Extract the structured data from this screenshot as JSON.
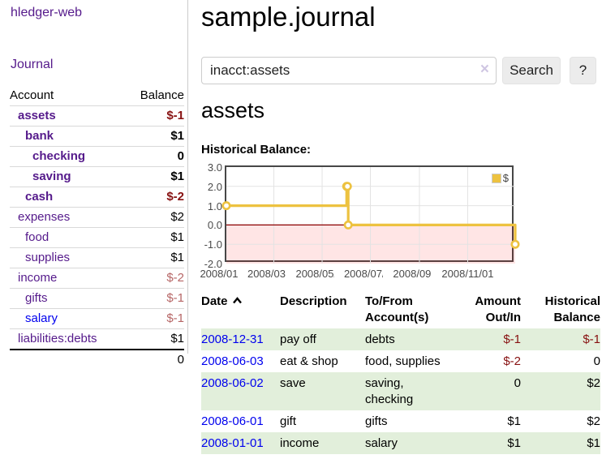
{
  "app": {
    "brand": "hledger-web",
    "nav_journal": "Journal",
    "title": "sample.journal"
  },
  "search": {
    "value": "inacct:assets",
    "clear_icon": "×",
    "button_label": "Search",
    "help_label": "?"
  },
  "account_page": {
    "heading": "assets",
    "chart_title": "Historical Balance:"
  },
  "sidebar": {
    "header": {
      "account": "Account",
      "balance": "Balance"
    },
    "accounts": [
      {
        "name": "assets",
        "depth": 1,
        "bold": true,
        "link": "visited",
        "balance": "$-1",
        "balance_style": "negative"
      },
      {
        "name": "bank",
        "depth": 2,
        "bold": true,
        "link": "visited",
        "balance": "$1",
        "balance_style": "normal"
      },
      {
        "name": "checking",
        "depth": 3,
        "bold": true,
        "link": "visited",
        "balance": "0",
        "balance_style": "normal"
      },
      {
        "name": "saving",
        "depth": 3,
        "bold": true,
        "link": "visited",
        "balance": "$1",
        "balance_style": "normal"
      },
      {
        "name": "cash",
        "depth": 2,
        "bold": true,
        "link": "visited",
        "balance": "$-2",
        "balance_style": "negative"
      },
      {
        "name": "expenses",
        "depth": 1,
        "bold": false,
        "link": "visited",
        "balance": "$2",
        "balance_style": "normal"
      },
      {
        "name": "food",
        "depth": 2,
        "bold": false,
        "link": "visited",
        "balance": "$1",
        "balance_style": "normal"
      },
      {
        "name": "supplies",
        "depth": 2,
        "bold": false,
        "link": "visited",
        "balance": "$1",
        "balance_style": "normal"
      },
      {
        "name": "income",
        "depth": 1,
        "bold": false,
        "link": "visited",
        "balance": "$-2",
        "balance_style": "negative-muted"
      },
      {
        "name": "gifts",
        "depth": 2,
        "bold": false,
        "link": "visited",
        "balance": "$-1",
        "balance_style": "negative-muted"
      },
      {
        "name": "salary",
        "depth": 2,
        "bold": false,
        "link": "unvisited",
        "balance": "$-1",
        "balance_style": "negative-muted"
      },
      {
        "name": "liabilities:debts",
        "depth": 1,
        "bold": false,
        "link": "visited",
        "balance": "$1",
        "balance_style": "normal"
      }
    ],
    "total": "0"
  },
  "register": {
    "columns": {
      "date": "Date",
      "description": "Description",
      "accounts": "To/From\nAccount(s)",
      "amount": "Amount\nOut/In",
      "balance": "Historical\nBalance"
    },
    "rows": [
      {
        "date": "2008-12-31",
        "description": "pay off",
        "accounts": "debts",
        "amount": "$-1",
        "amount_negative": true,
        "balance": "$-1",
        "balance_negative": true,
        "striped": true
      },
      {
        "date": "2008-06-03",
        "description": "eat & shop",
        "accounts": "food, supplies",
        "amount": "$-2",
        "amount_negative": true,
        "balance": "0",
        "balance_negative": false,
        "striped": false
      },
      {
        "date": "2008-06-02",
        "description": "save",
        "accounts": "saving,\nchecking",
        "amount": "0",
        "amount_negative": false,
        "balance": "$2",
        "balance_negative": false,
        "striped": true
      },
      {
        "date": "2008-06-01",
        "description": "gift",
        "accounts": "gifts",
        "amount": "$1",
        "amount_negative": false,
        "balance": "$2",
        "balance_negative": false,
        "striped": false
      },
      {
        "date": "2008-01-01",
        "description": "income",
        "accounts": "salary",
        "amount": "$1",
        "amount_negative": false,
        "balance": "$1",
        "balance_negative": false,
        "striped": true
      }
    ]
  },
  "chart_data": {
    "type": "line",
    "step": true,
    "title": "Historical Balance:",
    "xlabel": "",
    "ylabel": "",
    "xlim_days": [
      0,
      365
    ],
    "ylim": [
      -2,
      3
    ],
    "grid": true,
    "legend_position": "top-right",
    "legend": [
      {
        "label": "$",
        "color": "#edc240"
      }
    ],
    "x_ticks": [
      {
        "day": 0,
        "label": "2008/01/01"
      },
      {
        "day": 60,
        "label": "2008/03/01"
      },
      {
        "day": 121,
        "label": "2008/05/01"
      },
      {
        "day": 182,
        "label": "2008/07/01"
      },
      {
        "day": 244,
        "label": "2008/09/01"
      },
      {
        "day": 305,
        "label": "2008/11/01"
      }
    ],
    "y_ticks": [
      {
        "value": 3,
        "label": "3.0"
      },
      {
        "value": 2,
        "label": "2.0"
      },
      {
        "value": 1,
        "label": "1.0"
      },
      {
        "value": 0,
        "label": "0.0"
      },
      {
        "value": -1,
        "label": "-1.0"
      },
      {
        "value": -2,
        "label": "-2.0"
      }
    ],
    "series": [
      {
        "name": "$",
        "color": "#edc240",
        "points": [
          {
            "date": "2008-01-01",
            "day": 0,
            "value": 1
          },
          {
            "date": "2008-06-01",
            "day": 152,
            "value": 2
          },
          {
            "date": "2008-06-02",
            "day": 153,
            "value": 2
          },
          {
            "date": "2008-06-03",
            "day": 154,
            "value": 0
          },
          {
            "date": "2008-12-31",
            "day": 365,
            "value": -1
          }
        ]
      }
    ],
    "negative_region": {
      "fill": "rgba(255,0,0,0.10)",
      "zero_line_color": "#8b0000"
    }
  },
  "colors": {
    "link_visited": "#551a8b",
    "link_unvisited": "#0000ee",
    "negative": "#871111",
    "negative_muted": "#b66666",
    "stripe_green": "#e2efdb",
    "series_gold": "#edc240",
    "plot_border": "#474747",
    "gridline": "#e3e3e3"
  }
}
